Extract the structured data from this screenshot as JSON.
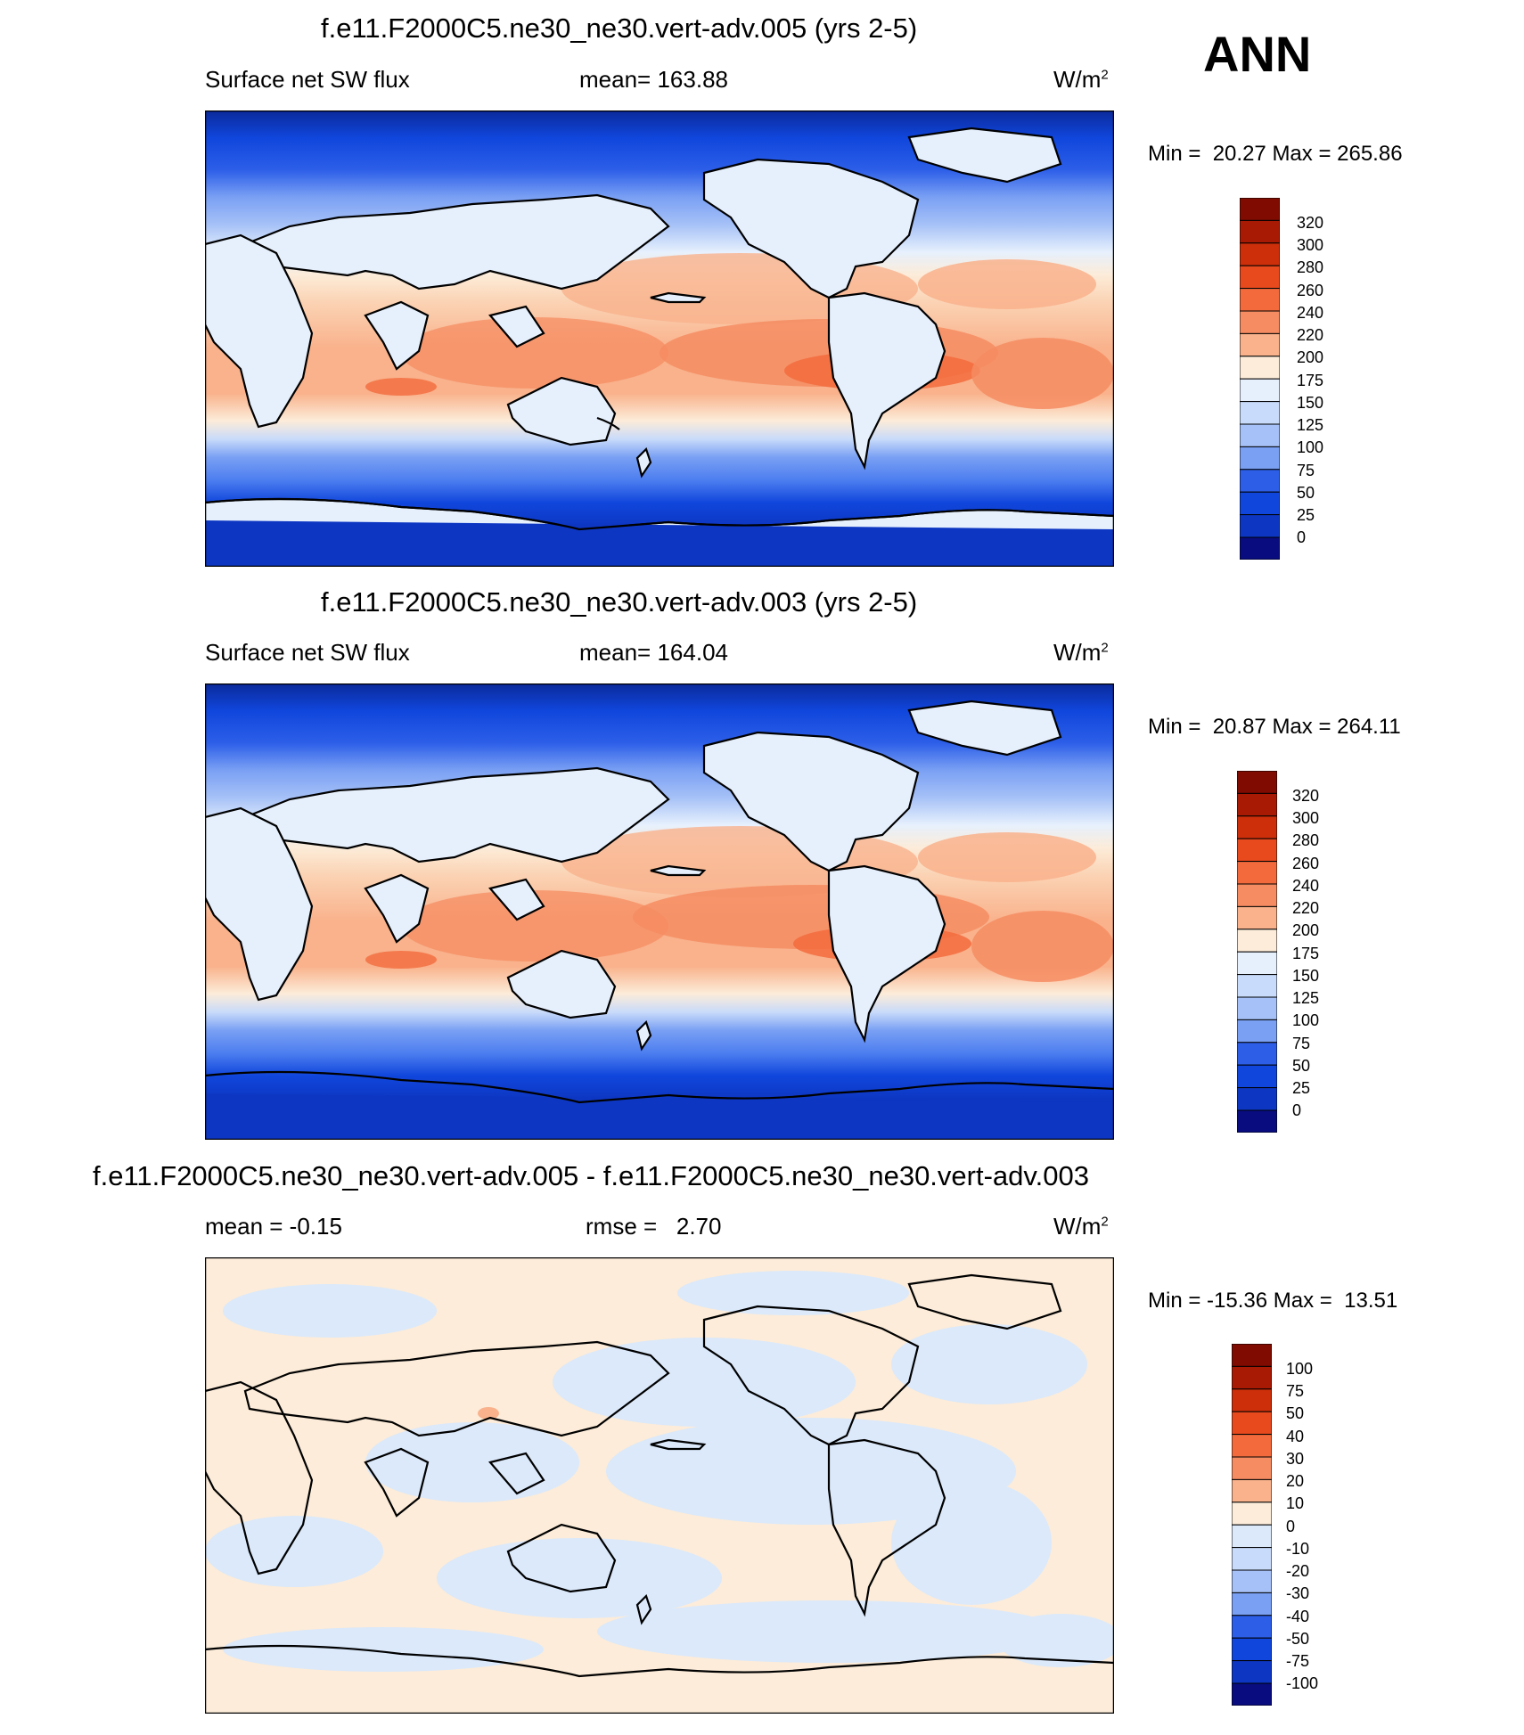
{
  "season": "ANN",
  "colors": {
    "ocean_deep": "#06208c",
    "coast": "#000000",
    "scale_main": [
      "#080c7f",
      "#0b2a9b",
      "#0d37c3",
      "#1046dc",
      "#2c5ee8",
      "#4d7ef0",
      "#7aa0f4",
      "#a6c1f7",
      "#c9dbfa",
      "#e6f0fd",
      "#fcecd9",
      "#fbd3b4",
      "#f9b28c",
      "#f68c62",
      "#f36b3d",
      "#e84a1e",
      "#cc2f0a",
      "#a91a04",
      "#800b00"
    ]
  },
  "panels": [
    {
      "title": "f.e11.F2000C5.ne30_ne30.vert-adv.005 (yrs 2-5)",
      "left": "Surface net SW flux",
      "center_label": "mean=",
      "center_value": "163.88",
      "units": "W/m",
      "units_sup": "2",
      "min_label": "Min =",
      "min_value": "20.27",
      "max_label": "Max =",
      "max_value": "265.86",
      "levels": [
        "320",
        "300",
        "280",
        "260",
        "240",
        "220",
        "200",
        "175",
        "150",
        "125",
        "100",
        "75",
        "50",
        "25",
        "0"
      ]
    },
    {
      "title": "f.e11.F2000C5.ne30_ne30.vert-adv.003 (yrs 2-5)",
      "left": "Surface net SW flux",
      "center_label": "mean=",
      "center_value": "164.04",
      "units": "W/m",
      "units_sup": "2",
      "min_label": "Min =",
      "min_value": "20.87",
      "max_label": "Max =",
      "max_value": "264.11",
      "levels": [
        "320",
        "300",
        "280",
        "260",
        "240",
        "220",
        "200",
        "175",
        "150",
        "125",
        "100",
        "75",
        "50",
        "25",
        "0"
      ]
    },
    {
      "title": "f.e11.F2000C5.ne30_ne30.vert-adv.005 - f.e11.F2000C5.ne30_ne30.vert-adv.003",
      "left": "mean =  -0.15",
      "center_label": "rmse =",
      "center_value": "2.70",
      "units": "W/m",
      "units_sup": "2",
      "min_label": "Min =",
      "min_value": "-15.36",
      "max_label": "Max =",
      "max_value": "13.51",
      "levels": [
        "100",
        "75",
        "50",
        "40",
        "30",
        "20",
        "10",
        "0",
        "-10",
        "-20",
        "-30",
        "-40",
        "-50",
        "-75",
        "-100"
      ]
    }
  ]
}
